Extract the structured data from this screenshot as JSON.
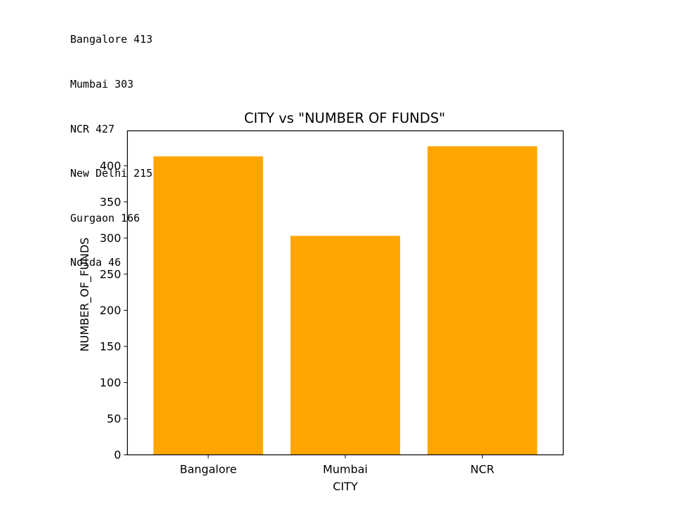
{
  "console_output": [
    "Bangalore 413",
    "Mumbai 303",
    "NCR 427",
    "New Delhi 215",
    "Gurgaon 166",
    "Noida 46"
  ],
  "colors": {
    "bar": "#ffa500",
    "axis": "#000000",
    "background": "#ffffff"
  },
  "chart_data": {
    "type": "bar",
    "title": "CITY vs \"NUMBER OF FUNDS\"",
    "xlabel": "CITY",
    "ylabel": "NUMBER_OF_FUNDS",
    "categories": [
      "Bangalore",
      "Mumbai",
      "NCR"
    ],
    "values": [
      413,
      303,
      427
    ],
    "ylim": [
      0,
      448.35
    ],
    "yticks": [
      0,
      50,
      100,
      150,
      200,
      250,
      300,
      350,
      400
    ],
    "grid": false,
    "legend": "none"
  }
}
